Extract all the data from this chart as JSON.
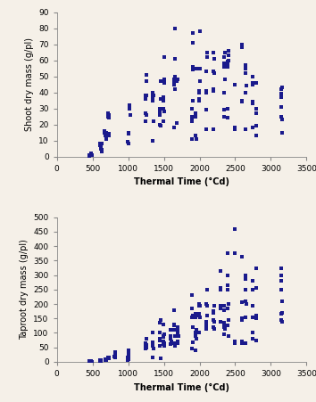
{
  "top_plot": {
    "xlabel": "Thermal Time (°Cd)",
    "ylabel": "Shoot dry mass (g/pl)",
    "xlim": [
      0,
      3500
    ],
    "ylim": [
      0,
      90
    ],
    "xticks": [
      0,
      500,
      1000,
      1500,
      2000,
      2500,
      3000,
      3500
    ],
    "yticks": [
      0,
      10,
      20,
      30,
      40,
      50,
      60,
      70,
      80,
      90
    ],
    "x": [
      450,
      460,
      470,
      480,
      490,
      600,
      605,
      610,
      615,
      620,
      625,
      630,
      635,
      670,
      672,
      674,
      676,
      678,
      680,
      682,
      684,
      686,
      688,
      690,
      720,
      722,
      724,
      726,
      728,
      730,
      995,
      1000,
      1005,
      1010,
      1015,
      1020,
      1025,
      1240,
      1242,
      1244,
      1246,
      1248,
      1250,
      1252,
      1254,
      1256,
      1340,
      1342,
      1344,
      1346,
      1348,
      1350,
      1352,
      1440,
      1442,
      1444,
      1446,
      1448,
      1450,
      1452,
      1454,
      1490,
      1492,
      1494,
      1496,
      1498,
      1500,
      1502,
      1504,
      1506,
      1640,
      1642,
      1644,
      1646,
      1648,
      1650,
      1652,
      1654,
      1656,
      1658,
      1680,
      1685,
      1690,
      1890,
      1892,
      1894,
      1896,
      1898,
      1900,
      1902,
      1904,
      1906,
      1908,
      1945,
      1947,
      1949,
      1951,
      1953,
      1990,
      1992,
      1994,
      1996,
      1998,
      2000,
      2002,
      2004,
      2006,
      2090,
      2092,
      2094,
      2096,
      2098,
      2100,
      2102,
      2190,
      2192,
      2194,
      2196,
      2198,
      2200,
      2202,
      2340,
      2342,
      2344,
      2346,
      2348,
      2350,
      2352,
      2354,
      2390,
      2392,
      2394,
      2396,
      2398,
      2400,
      2402,
      2404,
      2406,
      2490,
      2492,
      2494,
      2590,
      2592,
      2594,
      2596,
      2640,
      2642,
      2644,
      2646,
      2648,
      2650,
      2652,
      2740,
      2742,
      2744,
      2746,
      2748,
      2750,
      2790,
      2792,
      2794,
      2796,
      2798,
      2800,
      3140,
      3142,
      3144,
      3146,
      3148,
      3150,
      3152,
      3154,
      3156
    ],
    "y": [
      1,
      0,
      1,
      2,
      1,
      7,
      8,
      7,
      6,
      5,
      4,
      3,
      8,
      16,
      15,
      14,
      13,
      15,
      14,
      13,
      15,
      15,
      12,
      11,
      25,
      27,
      26,
      24,
      14,
      13,
      9,
      8,
      15,
      14,
      30,
      32,
      26,
      22,
      38,
      37,
      36,
      27,
      26,
      38,
      47,
      51,
      10,
      37,
      40,
      35,
      38,
      38,
      22,
      20,
      28,
      27,
      26,
      30,
      36,
      47,
      19,
      22,
      37,
      36,
      35,
      30,
      28,
      46,
      62,
      48,
      18,
      45,
      48,
      47,
      45,
      42,
      80,
      61,
      50,
      47,
      21,
      47,
      48,
      11,
      30,
      25,
      24,
      22,
      54,
      56,
      71,
      77,
      35,
      13,
      27,
      25,
      55,
      11,
      35,
      40,
      41,
      36,
      35,
      78,
      55,
      47,
      55,
      17,
      29,
      40,
      41,
      53,
      65,
      62,
      17,
      42,
      41,
      53,
      65,
      52,
      61,
      25,
      29,
      40,
      56,
      62,
      58,
      48,
      65,
      24,
      30,
      56,
      57,
      58,
      59,
      60,
      63,
      66,
      45,
      18,
      17,
      34,
      68,
      35,
      70,
      56,
      57,
      55,
      52,
      40,
      17,
      44,
      45,
      33,
      34,
      18,
      50,
      46,
      46,
      13,
      19,
      27,
      30,
      46,
      42,
      38,
      39,
      37,
      25,
      31,
      15,
      43,
      23
    ]
  },
  "bottom_plot": {
    "xlabel": "Thermal Time (°Cd)",
    "ylabel": "Taproot dry mass (g/pl)",
    "xlim": [
      0,
      3500
    ],
    "ylim": [
      0,
      500
    ],
    "xticks": [
      0,
      500,
      1000,
      1500,
      2000,
      2500,
      3000,
      3500
    ],
    "yticks": [
      0,
      50,
      100,
      150,
      200,
      250,
      300,
      350,
      400,
      450,
      500
    ],
    "x": [
      450,
      455,
      460,
      465,
      470,
      475,
      480,
      485,
      490,
      600,
      602,
      604,
      606,
      608,
      610,
      612,
      614,
      675,
      677,
      679,
      681,
      683,
      685,
      687,
      689,
      720,
      722,
      724,
      726,
      728,
      730,
      810,
      812,
      814,
      816,
      818,
      820,
      990,
      992,
      994,
      996,
      998,
      1000,
      1002,
      1004,
      1006,
      1008,
      1010,
      1240,
      1242,
      1244,
      1246,
      1248,
      1250,
      1252,
      1254,
      1340,
      1342,
      1344,
      1346,
      1348,
      1350,
      1440,
      1442,
      1444,
      1446,
      1448,
      1450,
      1452,
      1490,
      1492,
      1494,
      1496,
      1498,
      1500,
      1502,
      1504,
      1590,
      1592,
      1594,
      1596,
      1598,
      1600,
      1602,
      1640,
      1642,
      1644,
      1646,
      1648,
      1650,
      1652,
      1654,
      1690,
      1692,
      1694,
      1696,
      1698,
      1700,
      1890,
      1892,
      1894,
      1896,
      1898,
      1900,
      1902,
      1904,
      1940,
      1942,
      1944,
      1946,
      1948,
      1950,
      1952,
      1990,
      1992,
      1994,
      1996,
      1998,
      2000,
      2002,
      2090,
      2092,
      2094,
      2096,
      2098,
      2100,
      2102,
      2104,
      2190,
      2192,
      2194,
      2196,
      2198,
      2200,
      2202,
      2204,
      2290,
      2292,
      2294,
      2296,
      2298,
      2300,
      2340,
      2342,
      2344,
      2346,
      2348,
      2350,
      2352,
      2390,
      2392,
      2394,
      2396,
      2398,
      2400,
      2402,
      2404,
      2406,
      2490,
      2492,
      2494,
      2496,
      2590,
      2592,
      2594,
      2596,
      2598,
      2600,
      2640,
      2642,
      2644,
      2646,
      2648,
      2650,
      2652,
      2740,
      2742,
      2744,
      2746,
      2748,
      2750,
      2790,
      2792,
      2794,
      2796,
      2798,
      2800,
      3140,
      3142,
      3144,
      3146,
      3148,
      3150,
      3152,
      3154,
      3156
    ],
    "y": [
      2,
      1,
      3,
      2,
      1,
      2,
      3,
      2,
      1,
      5,
      4,
      5,
      6,
      7,
      5,
      4,
      5,
      8,
      9,
      10,
      8,
      7,
      9,
      8,
      6,
      15,
      14,
      15,
      16,
      14,
      13,
      18,
      20,
      19,
      17,
      16,
      35,
      5,
      8,
      10,
      12,
      15,
      20,
      25,
      30,
      35,
      40,
      10,
      45,
      60,
      62,
      65,
      50,
      48,
      58,
      80,
      15,
      55,
      65,
      68,
      100,
      45,
      55,
      75,
      80,
      100,
      135,
      145,
      12,
      60,
      90,
      85,
      130,
      70,
      95,
      65,
      55,
      60,
      80,
      90,
      110,
      60,
      65,
      70,
      65,
      110,
      125,
      130,
      178,
      65,
      55,
      90,
      100,
      120,
      70,
      115,
      65,
      90,
      45,
      155,
      230,
      185,
      155,
      68,
      120,
      160,
      40,
      90,
      100,
      155,
      165,
      110,
      80,
      160,
      200,
      195,
      165,
      100,
      195,
      155,
      130,
      120,
      115,
      140,
      200,
      250,
      195,
      160,
      120,
      175,
      170,
      145,
      120,
      115,
      140,
      195,
      315,
      255,
      185,
      250,
      195,
      140,
      130,
      135,
      120,
      180,
      195,
      95,
      115,
      375,
      265,
      300,
      250,
      185,
      125,
      145,
      90,
      200,
      375,
      460,
      70,
      65,
      205,
      365,
      150,
      145,
      65,
      70,
      65,
      210,
      250,
      155,
      300,
      285,
      200,
      100,
      195,
      250,
      280,
      80,
      155,
      155,
      75,
      325,
      255,
      160,
      150,
      325,
      300,
      250,
      280,
      165,
      145,
      140,
      170,
      210
    ]
  },
  "marker": "s",
  "color": "#1a1a8c",
  "markersize": 3,
  "bg_color": "#f5f0e8",
  "label_fontsize": 7,
  "tick_fontsize": 6.5
}
